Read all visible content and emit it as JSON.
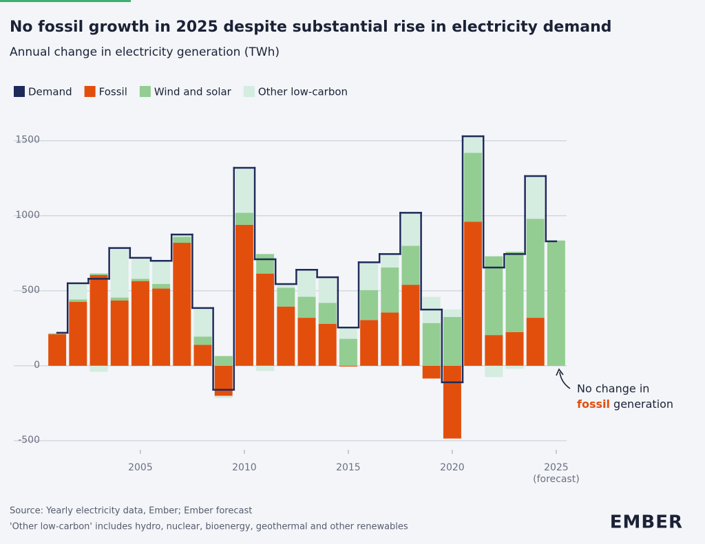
{
  "chart_data": {
    "type": "stacked_bar_step",
    "title": "No fossil growth in 2025 despite substantial rise in electricity demand",
    "subtitle": "Annual change in electricity generation (TWh)",
    "x": [
      2001,
      2002,
      2003,
      2004,
      2005,
      2006,
      2007,
      2008,
      2009,
      2010,
      2011,
      2012,
      2013,
      2014,
      2015,
      2016,
      2017,
      2018,
      2019,
      2020,
      2021,
      2022,
      2023,
      2024,
      2025
    ],
    "xlim": [
      2000.4,
      2025.5
    ],
    "xticks": [
      2005,
      2010,
      2015,
      2020,
      2025
    ],
    "xtick_note": "(forecast)",
    "ylim": [
      -560,
      1650
    ],
    "yticks": [
      -500,
      0,
      500,
      1000,
      1500
    ],
    "grid": true,
    "legend": "top-left",
    "demand": {
      "name": "Demand",
      "color": "#1e2a5a",
      "values": [
        220,
        550,
        580,
        785,
        720,
        700,
        875,
        385,
        -160,
        1320,
        710,
        545,
        640,
        590,
        255,
        690,
        745,
        1020,
        375,
        -110,
        1530,
        655,
        745,
        1265,
        830
      ]
    },
    "series": [
      {
        "name": "Fossil",
        "color": "#e24f0c",
        "values": [
          210,
          427,
          605,
          435,
          565,
          515,
          820,
          140,
          -200,
          940,
          615,
          395,
          320,
          280,
          -5,
          305,
          355,
          540,
          -85,
          -485,
          960,
          205,
          225,
          320,
          0
        ]
      },
      {
        "name": "Wind and solar",
        "color": "#93cd92",
        "values": [
          5,
          15,
          10,
          20,
          15,
          30,
          40,
          55,
          65,
          80,
          130,
          125,
          140,
          140,
          180,
          200,
          300,
          260,
          285,
          325,
          460,
          525,
          535,
          660,
          835
        ]
      },
      {
        "name": "Other low-carbon",
        "color": "#d5ece0",
        "values": [
          5,
          110,
          -40,
          330,
          135,
          155,
          15,
          185,
          -15,
          295,
          -35,
          25,
          180,
          170,
          70,
          185,
          90,
          220,
          175,
          50,
          110,
          -75,
          -20,
          280,
          0
        ]
      }
    ],
    "annotation": {
      "line1": "No change in",
      "highlight": "fossil",
      "line2": " generation"
    },
    "footer": {
      "source": "Source: Yearly electricity data, Ember; Ember forecast",
      "note": "'Other low-carbon' includes hydro, nuclear, bioenergy, geothermal and other renewables"
    },
    "logo": "EMBER"
  }
}
